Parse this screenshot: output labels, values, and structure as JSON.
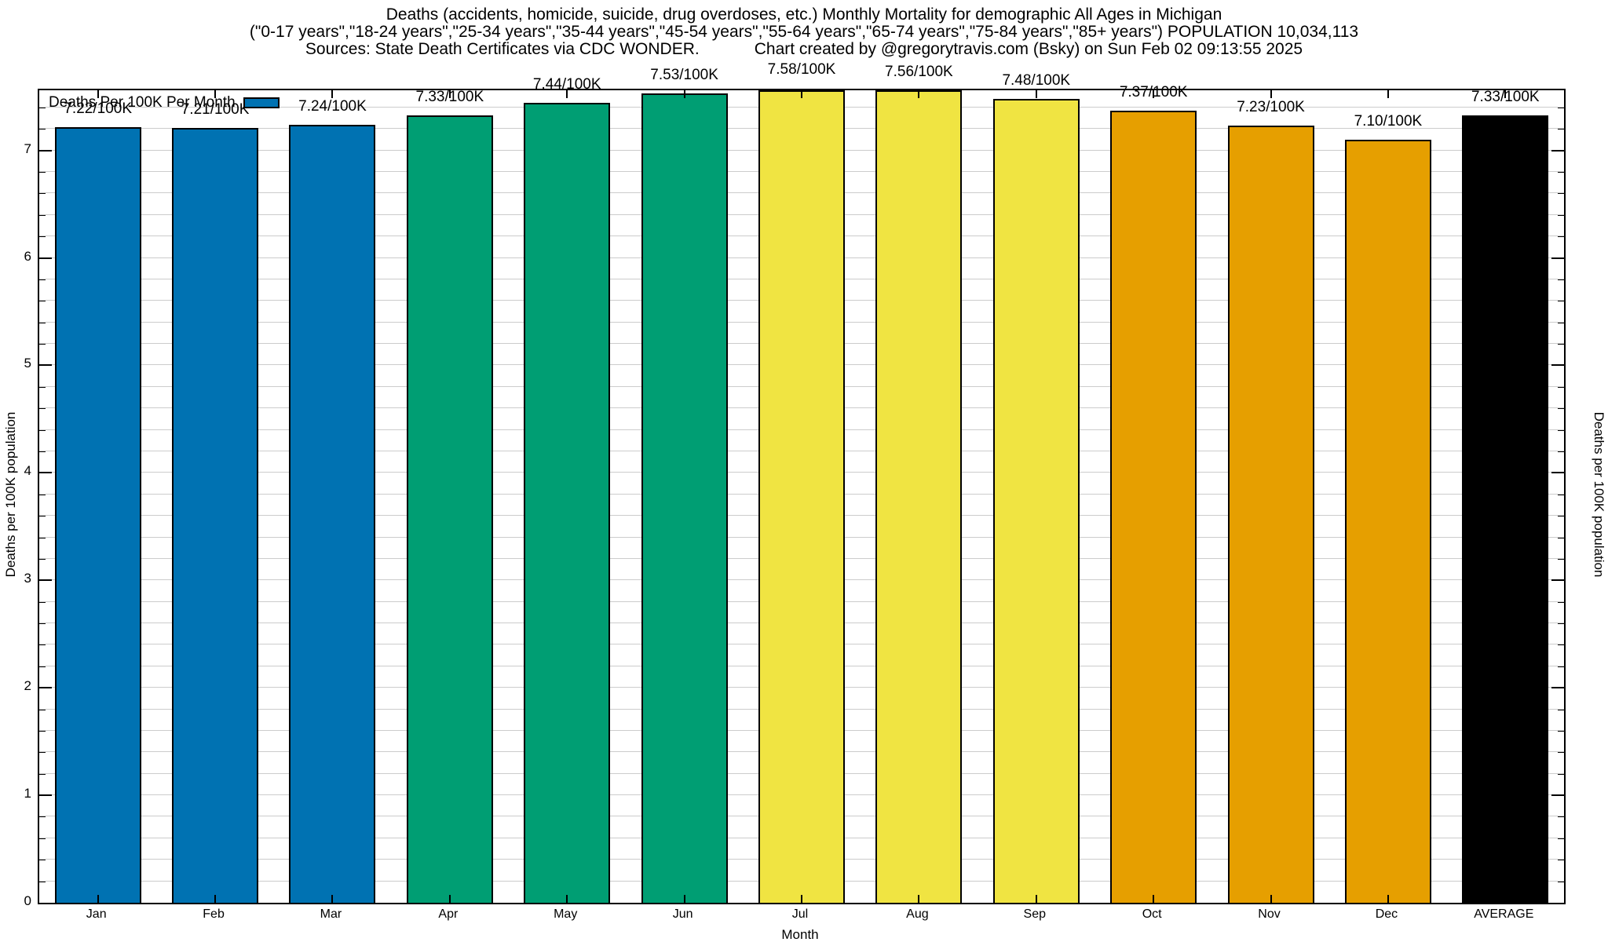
{
  "header": {
    "title_line1": "Deaths (accidents, homicide, suicide, drug overdoses, etc.) Monthly Mortality for demographic All Ages in Michigan",
    "title_line2": "(\"0-17 years\",\"18-24 years\",\"25-34 years\",\"35-44 years\",\"45-54 years\",\"55-64 years\",\"65-74 years\",\"75-84 years\",\"85+ years\") POPULATION 10,034,113",
    "title_line3_left": "Sources: State Death Certificates via CDC WONDER.",
    "title_line3_right": "Chart created by @gregorytravis.com (Bsky) on Sun Feb 02 09:13:55 2025"
  },
  "legend": {
    "label": "Deaths Per 100K Per Month",
    "swatch_color": "#0072B2"
  },
  "chart_data": {
    "type": "bar",
    "title": "Deaths (accidents, homicide, suicide, drug overdoses, etc.) Monthly Mortality for demographic All Ages in Michigan",
    "categories": [
      "Jan",
      "Feb",
      "Mar",
      "Apr",
      "May",
      "Jun",
      "Jul",
      "Aug",
      "Sep",
      "Oct",
      "Nov",
      "Dec",
      "AVERAGE"
    ],
    "values": [
      7.22,
      7.21,
      7.24,
      7.33,
      7.44,
      7.53,
      7.58,
      7.56,
      7.48,
      7.37,
      7.23,
      7.1,
      7.33
    ],
    "value_labels": [
      "7.22/100K",
      "7.21/100K",
      "7.24/100K",
      "7.33/100K",
      "7.44/100K",
      "7.53/100K",
      "7.58/100K",
      "7.56/100K",
      "7.48/100K",
      "7.37/100K",
      "7.23/100K",
      "7.10/100K",
      "7.33/100K"
    ],
    "bar_colors": [
      "#0072B2",
      "#0072B2",
      "#0072B2",
      "#009E73",
      "#009E73",
      "#009E73",
      "#F0E442",
      "#F0E442",
      "#F0E442",
      "#E69F00",
      "#E69F00",
      "#E69F00",
      "#000000"
    ],
    "xlabel": "Month",
    "ylabel_left": "Deaths per 100K population",
    "ylabel_right": "Deaths per 100K population",
    "y_ticks": [
      0,
      1,
      2,
      3,
      4,
      5,
      6,
      7
    ],
    "ylim": [
      0,
      7.56
    ],
    "minor_grid_step": 0.2,
    "grid": true,
    "gridline_color": "#cccccc",
    "legend_label": "Deaths Per 100K Per Month",
    "legend_position": "top-left-inside"
  }
}
